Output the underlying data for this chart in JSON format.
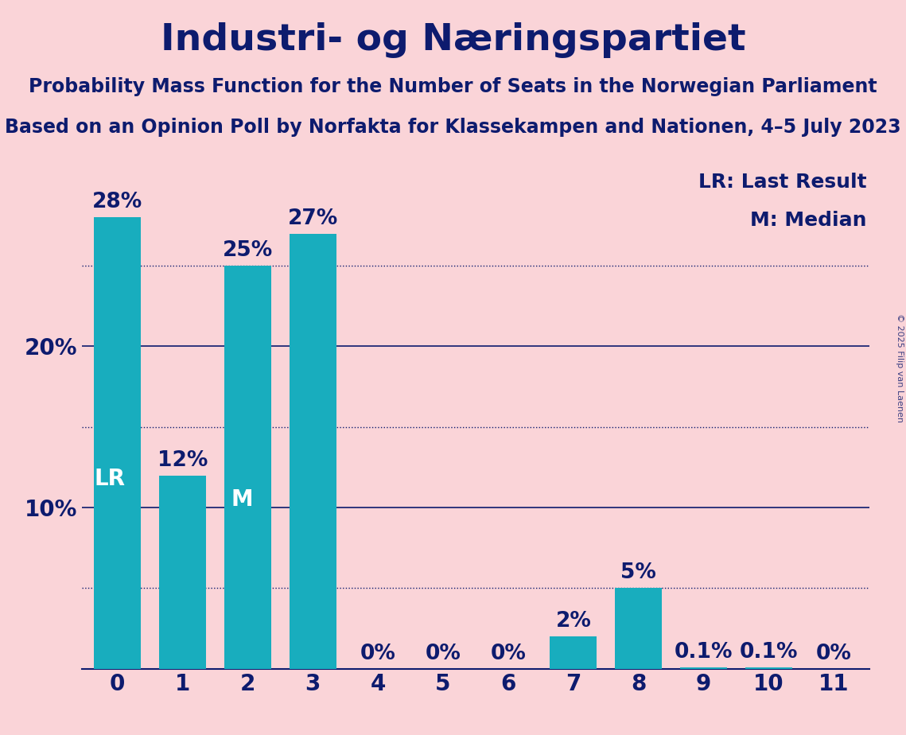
{
  "title": "Industri- og Næringspartiet",
  "subtitle1": "Probability Mass Function for the Number of Seats in the Norwegian Parliament",
  "subtitle2": "Based on an Opinion Poll by Norfakta for Klassekampen and Nationen, 4–5 July 2023",
  "copyright": "© 2025 Filip van Laenen",
  "seats": [
    0,
    1,
    2,
    3,
    4,
    5,
    6,
    7,
    8,
    9,
    10,
    11
  ],
  "values": [
    28,
    12,
    25,
    27,
    0,
    0,
    0,
    2,
    5,
    0.1,
    0.1,
    0
  ],
  "bar_color": "#18ADBE",
  "bg_color": "#FAD4D8",
  "text_color": "#0D1B6E",
  "bar_label_inside_color": "#FFFFFF",
  "lr_seat": 0,
  "median_seat": 2,
  "lr_label": "LR",
  "median_label": "M",
  "legend_lr": "LR: Last Result",
  "legend_m": "M: Median",
  "yticks": [
    10,
    20
  ],
  "ytick_labels": [
    "10%",
    "20%"
  ],
  "dotted_lines": [
    5,
    15,
    25
  ],
  "solid_lines": [
    10,
    20
  ],
  "value_labels": [
    "28%",
    "12%",
    "25%",
    "27%",
    "0%",
    "0%",
    "0%",
    "2%",
    "5%",
    "0.1%",
    "0.1%",
    "0%"
  ],
  "title_fontsize": 34,
  "subtitle_fontsize": 17,
  "label_fontsize": 19,
  "tick_fontsize": 20,
  "inside_label_fontsize": 20,
  "legend_fontsize": 18
}
